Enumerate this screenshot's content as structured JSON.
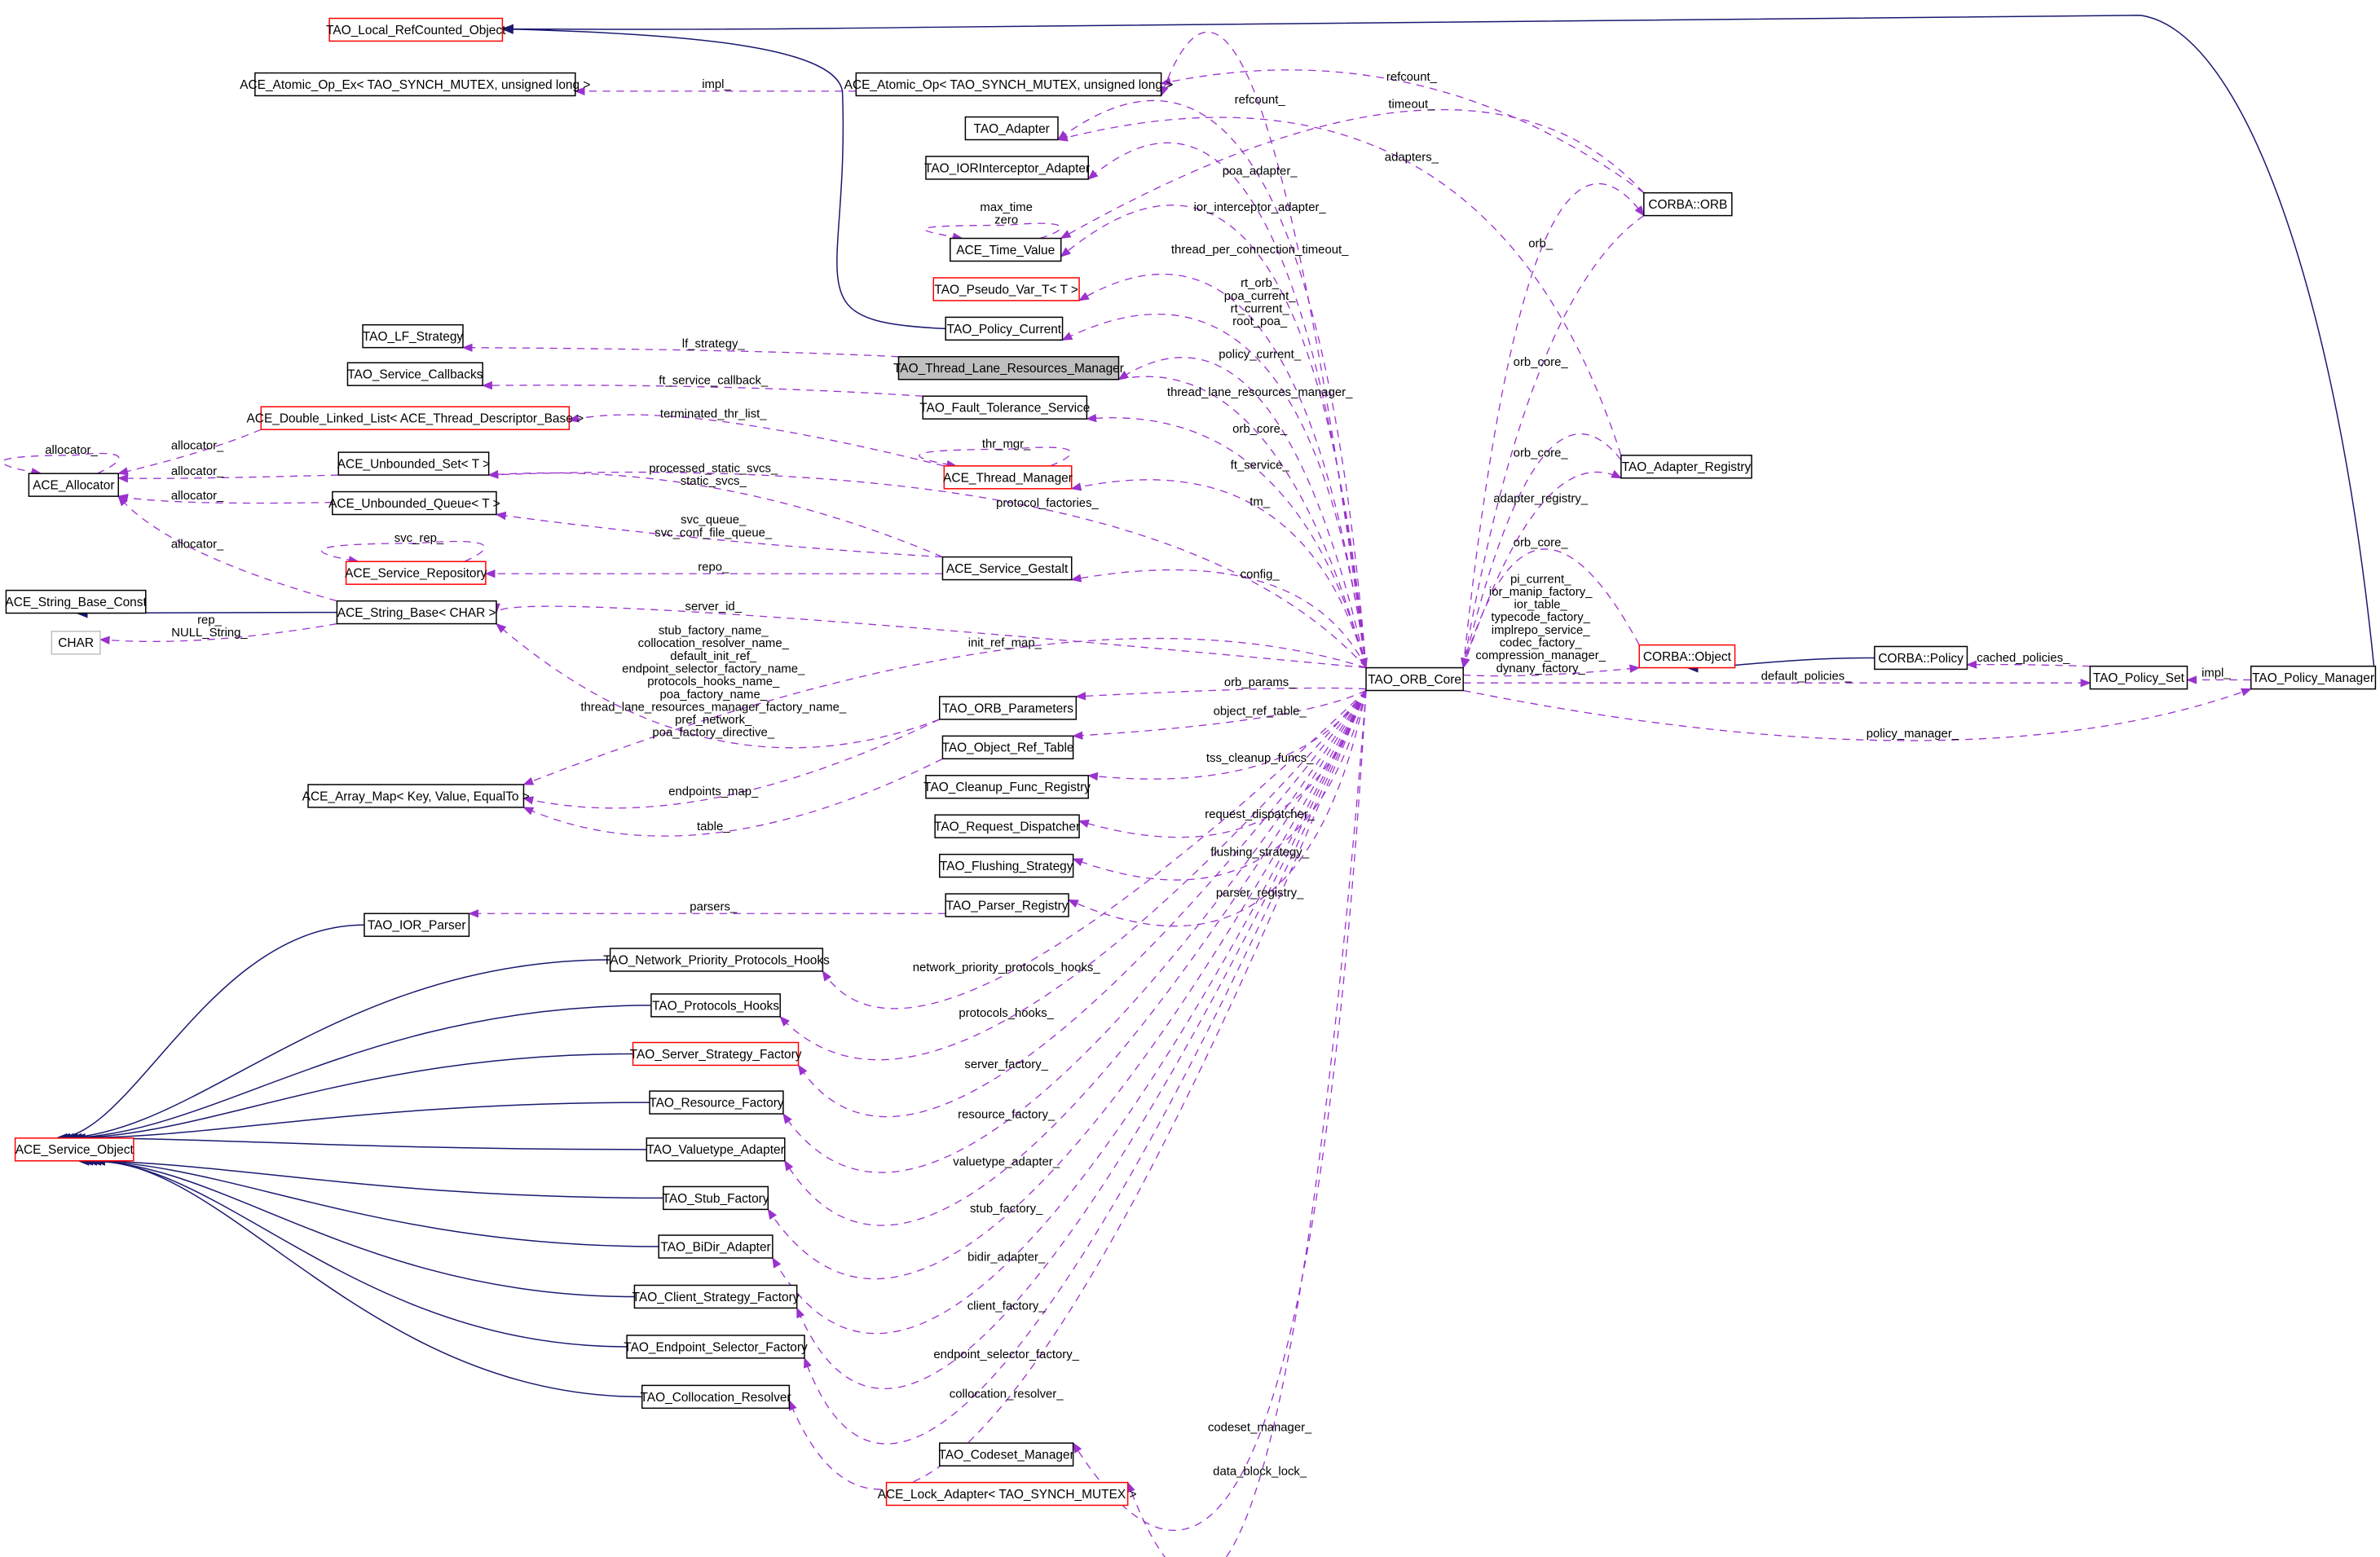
{
  "colors": {
    "usage_edge": "#9a32cd",
    "inheritance_edge": "#191970",
    "incomplete_border": "#ff0000",
    "focus_fill": "#bfbfbf"
  },
  "nodes": [
    {
      "label": "TAO_Local_RefCounted_Object",
      "style": "red"
    },
    {
      "label": "ACE_Atomic_Op_Ex< TAO_SYNCH_MUTEX, unsigned long >",
      "style": "black"
    },
    {
      "label": "ACE_Atomic_Op< TAO_SYNCH_MUTEX, unsigned long >",
      "style": "black"
    },
    {
      "label": "TAO_Adapter",
      "style": "black"
    },
    {
      "label": "TAO_IORInterceptor_Adapter",
      "style": "black"
    },
    {
      "label": "ACE_Time_Value",
      "style": "black"
    },
    {
      "label": "TAO_Pseudo_Var_T< T >",
      "style": "red"
    },
    {
      "label": "TAO_Policy_Current",
      "style": "black"
    },
    {
      "label": "TAO_Thread_Lane_Resources_Manager",
      "style": "focus"
    },
    {
      "label": "TAO_LF_Strategy",
      "style": "black"
    },
    {
      "label": "TAO_Service_Callbacks",
      "style": "black"
    },
    {
      "label": "TAO_Fault_Tolerance_Service",
      "style": "black"
    },
    {
      "label": "ACE_Double_Linked_List< ACE_Thread_Descriptor_Base >",
      "style": "red"
    },
    {
      "label": "ACE_Thread_Manager",
      "style": "red"
    },
    {
      "label": "ACE_Unbounded_Set< T >",
      "style": "black"
    },
    {
      "label": "ACE_Allocator",
      "style": "black"
    },
    {
      "label": "ACE_Unbounded_Queue< T >",
      "style": "black"
    },
    {
      "label": "ACE_Service_Repository",
      "style": "red"
    },
    {
      "label": "ACE_Service_Gestalt",
      "style": "black"
    },
    {
      "label": "ACE_String_Base_Const",
      "style": "black"
    },
    {
      "label": "ACE_String_Base< CHAR >",
      "style": "black"
    },
    {
      "label": "CHAR",
      "style": "gray"
    },
    {
      "label": "TAO_ORB_Core",
      "style": "black"
    },
    {
      "label": "TAO_ORB_Parameters",
      "style": "black"
    },
    {
      "label": "TAO_Object_Ref_Table",
      "style": "black"
    },
    {
      "label": "ACE_Array_Map< Key, Value, EqualTo >",
      "style": "black"
    },
    {
      "label": "TAO_Cleanup_Func_Registry",
      "style": "black"
    },
    {
      "label": "TAO_Request_Dispatcher",
      "style": "black"
    },
    {
      "label": "TAO_Flushing_Strategy",
      "style": "black"
    },
    {
      "label": "TAO_Parser_Registry",
      "style": "black"
    },
    {
      "label": "TAO_IOR_Parser",
      "style": "black"
    },
    {
      "label": "TAO_Network_Priority_Protocols_Hooks",
      "style": "black"
    },
    {
      "label": "TAO_Protocols_Hooks",
      "style": "black"
    },
    {
      "label": "TAO_Server_Strategy_Factory",
      "style": "red"
    },
    {
      "label": "TAO_Resource_Factory",
      "style": "black"
    },
    {
      "label": "ACE_Service_Object",
      "style": "red"
    },
    {
      "label": "TAO_Valuetype_Adapter",
      "style": "black"
    },
    {
      "label": "TAO_Stub_Factory",
      "style": "black"
    },
    {
      "label": "TAO_BiDir_Adapter",
      "style": "black"
    },
    {
      "label": "TAO_Client_Strategy_Factory",
      "style": "black"
    },
    {
      "label": "TAO_Endpoint_Selector_Factory",
      "style": "black"
    },
    {
      "label": "TAO_Collocation_Resolver",
      "style": "black"
    },
    {
      "label": "TAO_Codeset_Manager",
      "style": "black"
    },
    {
      "label": "ACE_Lock_Adapter< TAO_SYNCH_MUTEX >",
      "style": "red"
    },
    {
      "label": "CORBA::ORB",
      "style": "black"
    },
    {
      "label": "TAO_Adapter_Registry",
      "style": "black"
    },
    {
      "label": "CORBA::Object",
      "style": "red"
    },
    {
      "label": "CORBA::Policy",
      "style": "black"
    },
    {
      "label": "TAO_Policy_Set",
      "style": "black"
    },
    {
      "label": "TAO_Policy_Manager",
      "style": "black"
    }
  ],
  "inheritance": [
    {
      "derived": 7,
      "base": 0
    },
    {
      "derived": 49,
      "base": 0
    },
    {
      "derived": 20,
      "base": 19
    },
    {
      "derived": 47,
      "base": 46
    },
    {
      "derived": 30,
      "base": 35
    },
    {
      "derived": 31,
      "base": 35
    },
    {
      "derived": 32,
      "base": 35
    },
    {
      "derived": 33,
      "base": 35
    },
    {
      "derived": 34,
      "base": 35
    },
    {
      "derived": 36,
      "base": 35
    },
    {
      "derived": 37,
      "base": 35
    },
    {
      "derived": 38,
      "base": 35
    },
    {
      "derived": 39,
      "base": 35
    },
    {
      "derived": 40,
      "base": 35
    },
    {
      "derived": 41,
      "base": 35
    }
  ],
  "usage": [
    {
      "from": 2,
      "to": 1,
      "label": [
        "impl_"
      ]
    },
    {
      "from": 44,
      "to": 2,
      "label": [
        "refcount_"
      ]
    },
    {
      "from": 22,
      "to": 2,
      "label": [
        "refcount_"
      ]
    },
    {
      "from": 44,
      "to": 5,
      "label": [
        "timeout_"
      ]
    },
    {
      "from": 45,
      "to": 3,
      "label": [
        "adapters_"
      ]
    },
    {
      "from": 22,
      "to": 3,
      "label": [
        "poa_adapter_"
      ]
    },
    {
      "from": 22,
      "to": 4,
      "label": [
        "ior_interceptor_adapter_"
      ]
    },
    {
      "from": 5,
      "to": 5,
      "label": [
        "max_time",
        "zero"
      ]
    },
    {
      "from": 22,
      "to": 5,
      "label": [
        "thread_per_connection_timeout_"
      ]
    },
    {
      "from": 22,
      "to": 6,
      "label": [
        "rt_orb_",
        "poa_current_",
        "rt_current_",
        "root_poa_"
      ]
    },
    {
      "from": 22,
      "to": 7,
      "label": [
        "policy_current_"
      ]
    },
    {
      "from": 22,
      "to": 8,
      "label": [
        "thread_lane_resources_manager_"
      ]
    },
    {
      "from": 8,
      "to": 9,
      "label": [
        "lf_strategy_"
      ]
    },
    {
      "from": 11,
      "to": 10,
      "label": [
        "ft_service_callback_"
      ]
    },
    {
      "from": 13,
      "to": 12,
      "label": [
        "terminated_thr_list_"
      ]
    },
    {
      "from": 8,
      "to": 22,
      "label": [
        "orb_core_"
      ]
    },
    {
      "from": 22,
      "to": 11,
      "label": [
        "ft_service_"
      ]
    },
    {
      "from": 13,
      "to": 13,
      "label": [
        "thr_mgr_"
      ]
    },
    {
      "from": 22,
      "to": 13,
      "label": [
        "tm_"
      ]
    },
    {
      "from": 12,
      "to": 15,
      "label": [
        "allocator_"
      ]
    },
    {
      "from": 14,
      "to": 15,
      "label": [
        "allocator_"
      ]
    },
    {
      "from": 16,
      "to": 15,
      "label": [
        "allocator_"
      ]
    },
    {
      "from": 15,
      "to": 15,
      "label": [
        "allocator_"
      ]
    },
    {
      "from": 20,
      "to": 15,
      "label": [
        "allocator_"
      ]
    },
    {
      "from": 18,
      "to": 14,
      "label": [
        "processed_static_svcs_",
        "static_svcs_"
      ]
    },
    {
      "from": 18,
      "to": 16,
      "label": [
        "svc_queue_",
        "svc_conf_file_queue_"
      ]
    },
    {
      "from": 17,
      "to": 17,
      "label": [
        "svc_rep_"
      ]
    },
    {
      "from": 18,
      "to": 17,
      "label": [
        "repo_"
      ]
    },
    {
      "from": 22,
      "to": 14,
      "label": [
        "protocol_factories_"
      ]
    },
    {
      "from": 22,
      "to": 18,
      "label": [
        "config_"
      ]
    },
    {
      "from": 20,
      "to": 21,
      "label": [
        "rep_",
        "NULL_String_"
      ]
    },
    {
      "from": 22,
      "to": 20,
      "label": [
        "server_id_"
      ]
    },
    {
      "from": 23,
      "to": 20,
      "label": [
        "stub_factory_name_",
        "collocation_resolver_name_",
        "default_init_ref_",
        "endpoint_selector_factory_name_",
        "protocols_hooks_name_",
        "poa_factory_name_",
        "thread_lane_resources_manager_factory_name_",
        "pref_network_",
        "poa_factory_directive_"
      ]
    },
    {
      "from": 22,
      "to": 25,
      "label": [
        "init_ref_map_"
      ]
    },
    {
      "from": 22,
      "to": 23,
      "label": [
        "orb_params_"
      ]
    },
    {
      "from": 22,
      "to": 24,
      "label": [
        "object_ref_table_"
      ]
    },
    {
      "from": 23,
      "to": 25,
      "label": [
        "endpoints_map_"
      ]
    },
    {
      "from": 24,
      "to": 25,
      "label": [
        "table_"
      ]
    },
    {
      "from": 22,
      "to": 26,
      "label": [
        "tss_cleanup_funcs_"
      ]
    },
    {
      "from": 22,
      "to": 27,
      "label": [
        "request_dispatcher_"
      ]
    },
    {
      "from": 22,
      "to": 28,
      "label": [
        "flushing_strategy_"
      ]
    },
    {
      "from": 22,
      "to": 29,
      "label": [
        "parser_registry_"
      ]
    },
    {
      "from": 29,
      "to": 30,
      "label": [
        "parsers_"
      ]
    },
    {
      "from": 22,
      "to": 31,
      "label": [
        "network_priority_protocols_hooks_"
      ]
    },
    {
      "from": 22,
      "to": 32,
      "label": [
        "protocols_hooks_"
      ]
    },
    {
      "from": 22,
      "to": 33,
      "label": [
        "server_factory_"
      ]
    },
    {
      "from": 22,
      "to": 34,
      "label": [
        "resource_factory_"
      ]
    },
    {
      "from": 22,
      "to": 36,
      "label": [
        "valuetype_adapter_"
      ]
    },
    {
      "from": 22,
      "to": 37,
      "label": [
        "stub_factory_"
      ]
    },
    {
      "from": 22,
      "to": 38,
      "label": [
        "bidir_adapter_"
      ]
    },
    {
      "from": 22,
      "to": 39,
      "label": [
        "client_factory_"
      ]
    },
    {
      "from": 22,
      "to": 40,
      "label": [
        "endpoint_selector_factory_"
      ]
    },
    {
      "from": 22,
      "to": 41,
      "label": [
        "collocation_resolver_"
      ]
    },
    {
      "from": 22,
      "to": 42,
      "label": [
        "codeset_manager_"
      ]
    },
    {
      "from": 22,
      "to": 43,
      "label": [
        "data_block_lock_"
      ]
    },
    {
      "from": 22,
      "to": 44,
      "label": [
        "orb_"
      ]
    },
    {
      "from": 44,
      "to": 22,
      "label": [
        "orb_core_"
      ]
    },
    {
      "from": 45,
      "to": 22,
      "label": [
        "orb_core_"
      ]
    },
    {
      "from": 22,
      "to": 45,
      "label": [
        "adapter_registry_"
      ]
    },
    {
      "from": 46,
      "to": 22,
      "label": [
        "orb_core_"
      ]
    },
    {
      "from": 22,
      "to": 46,
      "label": [
        "pi_current_",
        "ior_manip_factory_",
        "ior_table_",
        "typecode_factory_",
        "implrepo_service_",
        "codec_factory_",
        "compression_manager_",
        "dynany_factory_"
      ]
    },
    {
      "from": 22,
      "to": 48,
      "label": [
        "default_policies_"
      ]
    },
    {
      "from": 22,
      "to": 49,
      "label": [
        "policy_manager_"
      ]
    },
    {
      "from": 48,
      "to": 47,
      "label": [
        "cached_policies_"
      ]
    },
    {
      "from": 49,
      "to": 48,
      "label": [
        "impl_"
      ]
    }
  ]
}
